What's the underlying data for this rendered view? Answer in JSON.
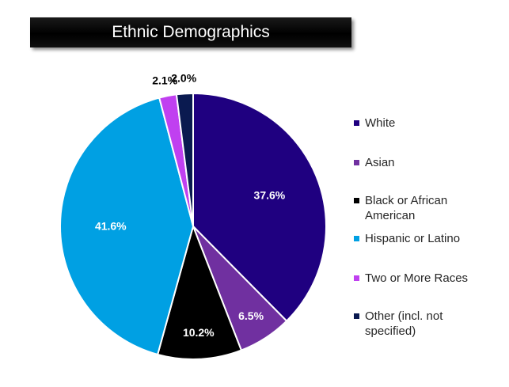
{
  "chart_data": {
    "type": "pie",
    "title": "Ethnic Demographics",
    "slices": [
      {
        "label": "White",
        "value": 37.6,
        "value_label": "37.6%",
        "color": "#1f0080"
      },
      {
        "label": "Asian",
        "value": 6.5,
        "value_label": "6.5%",
        "color": "#7030a0"
      },
      {
        "label": "Black or African American",
        "value": 10.2,
        "value_label": "10.2%",
        "color": "#000000"
      },
      {
        "label": "Hispanic or Latino",
        "value": 41.6,
        "value_label": "41.6%",
        "color": "#00a0e3"
      },
      {
        "label": "Two or More Races",
        "value": 2.1,
        "value_label": "2.1%",
        "color": "#c040f0"
      },
      {
        "label": "Other (incl. not specified)",
        "value": 2.0,
        "value_label": "2.0%",
        "color": "#0a1a50"
      }
    ],
    "legend_position": "right",
    "start_angle": "12 o'clock",
    "direction": "clockwise"
  }
}
